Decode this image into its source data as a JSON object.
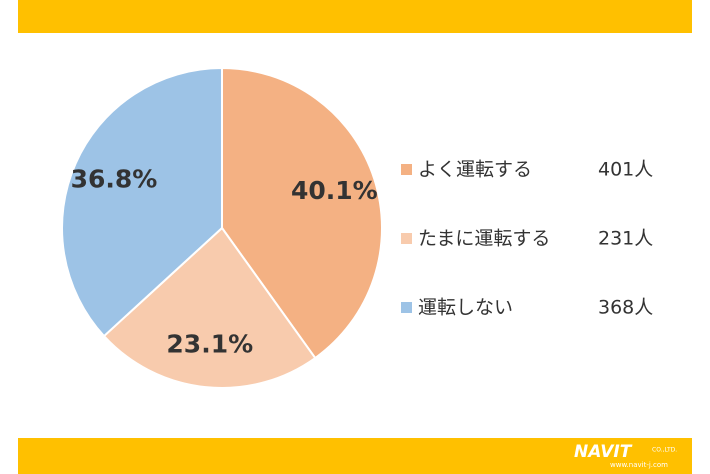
{
  "chart_data": {
    "type": "pie",
    "categories": [
      "よく運転する",
      "たまに運転する",
      "運転しない"
    ],
    "values": [
      40.1,
      23.1,
      36.8
    ],
    "value_labels": [
      "40.1%",
      "23.1%",
      "36.8%"
    ],
    "counts": [
      401,
      231,
      368
    ],
    "count_labels": [
      "401人",
      "231人",
      "368人"
    ],
    "colors": [
      "#f4b183",
      "#f8cbad",
      "#9dc3e6"
    ],
    "legend": "right"
  },
  "footer": {
    "logo": "NAVIT",
    "company": "CO.,LTD.",
    "url": "www.navit-j.com"
  }
}
